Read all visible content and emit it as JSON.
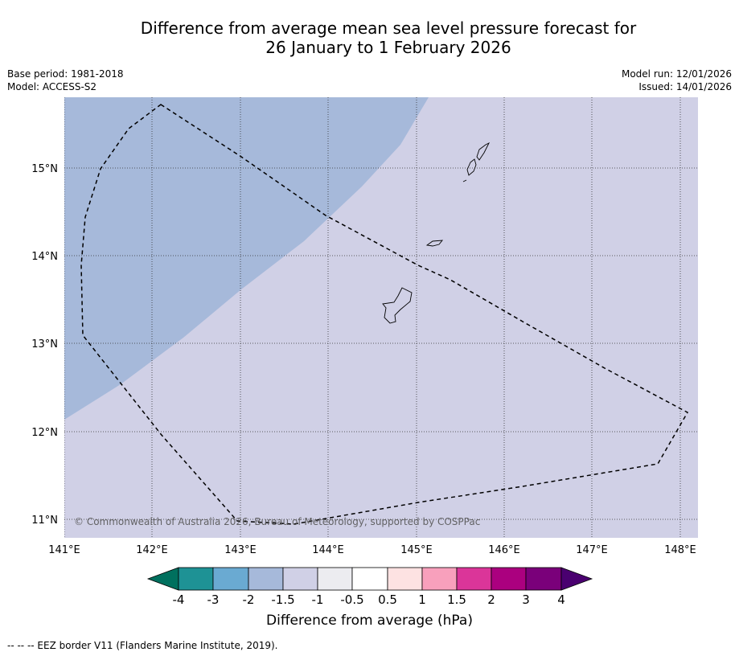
{
  "title": {
    "line1": "Difference from average mean sea level pressure forecast for",
    "line2": "26 January to 1 February 2026"
  },
  "meta": {
    "base_period": "Base period: 1981-2018",
    "model": "Model: ACCESS-S2",
    "model_run": "Model run: 12/01/2026",
    "issued": "Issued: 14/01/2026"
  },
  "axes": {
    "lon_ticks": [
      "141°E",
      "142°E",
      "143°E",
      "144°E",
      "145°E",
      "146°E",
      "147°E",
      "148°E"
    ],
    "lat_ticks": [
      "15°N",
      "14°N",
      "13°N",
      "12°N",
      "11°N"
    ]
  },
  "copyright": "© Commonwealth of Australia 2026, Bureau of Meteorology, supported by COSPPac",
  "colorbar": {
    "labels": [
      "-4",
      "-3",
      "-2",
      "-1.5",
      "-1",
      "-0.5",
      "0.5",
      "1",
      "1.5",
      "2",
      "3",
      "4"
    ],
    "colors": [
      "#00705e",
      "#1e9295",
      "#6aaad2",
      "#a6b9da",
      "#d0d0e6",
      "#ececf0",
      "#ffffff",
      "#fde2e2",
      "#f8a0bc",
      "#db3599",
      "#ab007f",
      "#7a007a",
      "#4a0070"
    ],
    "title": "Difference from average (hPa)"
  },
  "footnote": "--  --  -- EEZ border V11 (Flanders Marine Institute, 2019).",
  "map_fields": {
    "background_color": "#d0d0e6",
    "low_region_color": "#a6b9da",
    "low_region_category": "-2 to -1.5 hPa"
  }
}
